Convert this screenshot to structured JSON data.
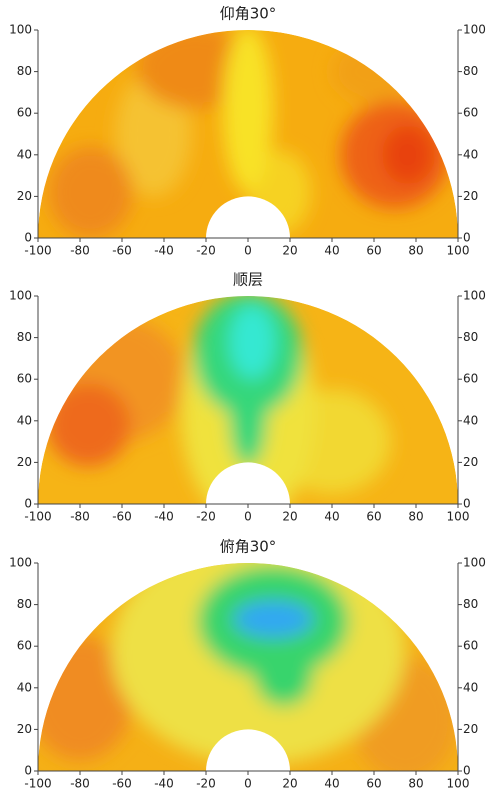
{
  "chart_data": [
    {
      "type": "polar-heatmap",
      "title": "仰角30°",
      "xlim": [
        -100,
        100
      ],
      "ylim": [
        0,
        100
      ],
      "y2lim": [
        0,
        100
      ],
      "xticks": [
        -100,
        -80,
        -60,
        -40,
        -20,
        0,
        20,
        40,
        60,
        80,
        100
      ],
      "yticks": [
        0,
        20,
        40,
        60,
        80,
        100
      ],
      "y2ticks": [
        0,
        20,
        40,
        60,
        80,
        100
      ]
    },
    {
      "type": "polar-heatmap",
      "title": "顺层",
      "xlim": [
        -100,
        100
      ],
      "ylim": [
        0,
        100
      ],
      "y2lim": [
        0,
        100
      ],
      "xticks": [
        -100,
        -80,
        -60,
        -40,
        -20,
        0,
        20,
        40,
        60,
        80,
        100
      ],
      "yticks": [
        0,
        20,
        40,
        60,
        80,
        100
      ],
      "y2ticks": [
        0,
        20,
        40,
        60,
        80,
        100
      ]
    },
    {
      "type": "polar-heatmap",
      "title": "俯角30°",
      "xlim": [
        -100,
        100
      ],
      "ylim": [
        0,
        100
      ],
      "y2lim": [
        0,
        100
      ],
      "xticks": [
        -100,
        -80,
        -60,
        -40,
        -20,
        0,
        20,
        40,
        60,
        80,
        100
      ],
      "yticks": [
        0,
        20,
        40,
        60,
        80,
        100
      ],
      "y2ticks": [
        0,
        20,
        40,
        60,
        80,
        100
      ]
    }
  ]
}
